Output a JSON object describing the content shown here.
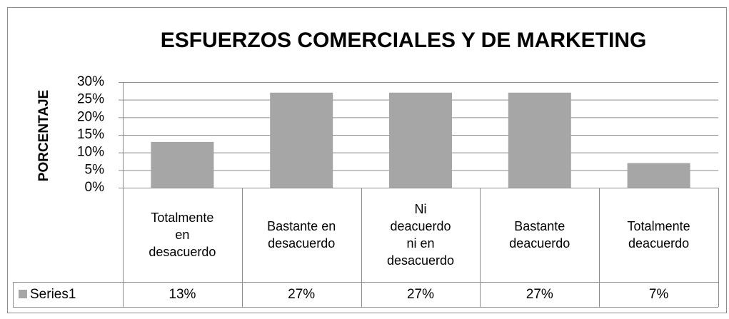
{
  "chart_data": {
    "type": "bar",
    "title": "ESFUERZOS COMERCIALES Y DE MARKETING",
    "y_label": "PORCENTAJE",
    "categories": [
      "Totalmente en desacuerdo",
      "Bastante en desacuerdo",
      "Ni deacuerdo ni en desacuerdo",
      "Bastante deacuerdo",
      "Totalmente deacuerdo"
    ],
    "series": [
      {
        "name": "Series1",
        "color": "#a6a6a6",
        "values": [
          13,
          27,
          27,
          27,
          7
        ],
        "value_labels": [
          "13%",
          "27%",
          "27%",
          "27%",
          "7%"
        ]
      }
    ],
    "ylim": [
      0,
      30
    ],
    "yticks": [
      {
        "value": 0,
        "label": "0%"
      },
      {
        "value": 5,
        "label": "5%"
      },
      {
        "value": 10,
        "label": "10%"
      },
      {
        "value": 15,
        "label": "15%"
      },
      {
        "value": 20,
        "label": "20%"
      },
      {
        "value": 25,
        "label": "25%"
      },
      {
        "value": 30,
        "label": "30%"
      }
    ],
    "grid": true
  }
}
